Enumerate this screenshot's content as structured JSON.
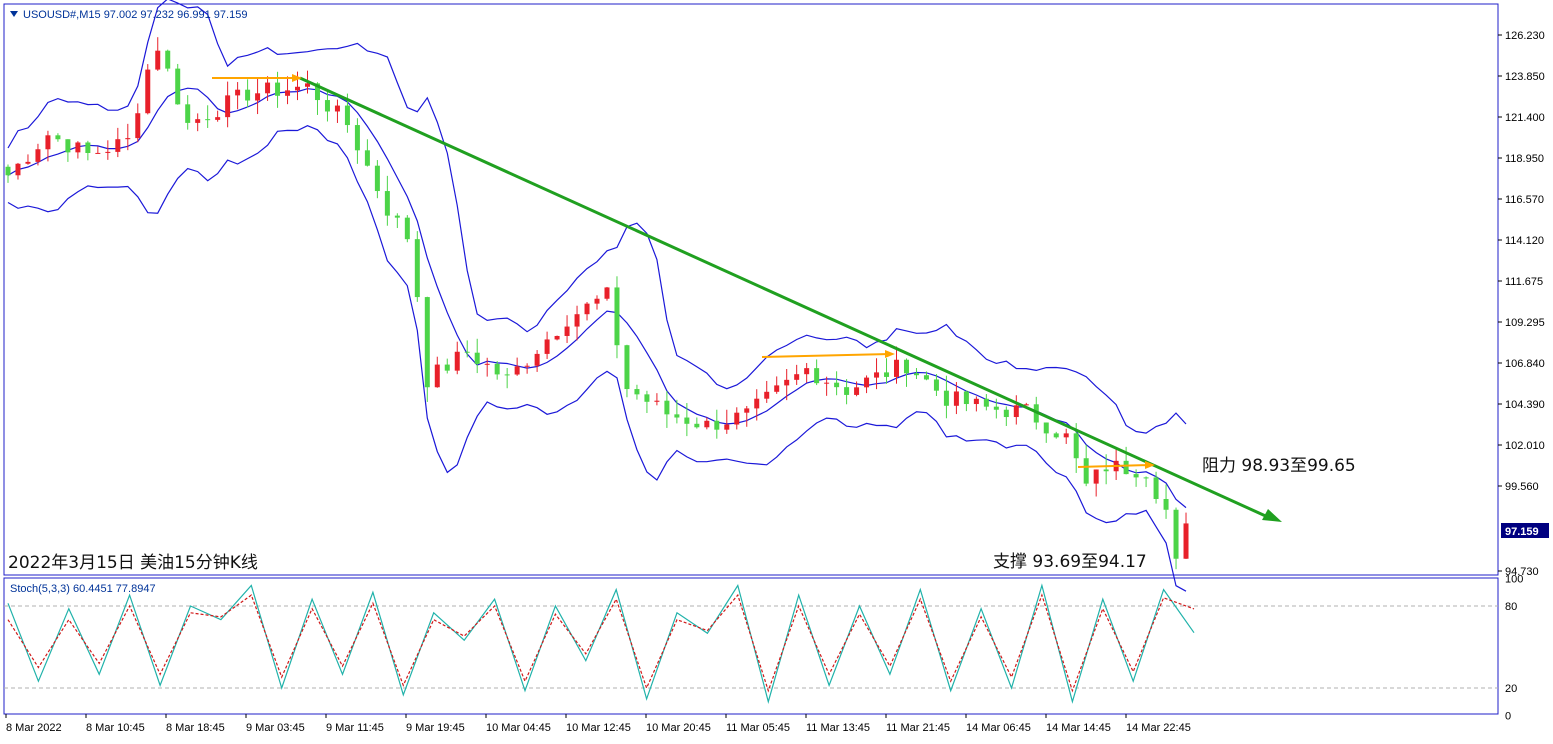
{
  "window": {
    "symbol_header": "USOUSD#,M15  97.002 97.232 96.991 97.159",
    "menu_icon": "triangle-down-icon"
  },
  "annotations": {
    "title": "2022年3月15日 美油15分钟K线",
    "resistance": "阻力 98.93至99.65",
    "support": "支撑 93.69至94.17"
  },
  "price_axis": {
    "ticks": [
      "126.230",
      "123.850",
      "121.400",
      "118.950",
      "116.570",
      "114.120",
      "111.675",
      "109.295",
      "106.840",
      "104.390",
      "102.010",
      "99.560",
      "97.159",
      "94.730"
    ],
    "current_price": "97.159"
  },
  "stoch": {
    "label": "Stoch(5,3,3) 60.4451 77.8947",
    "ticks": [
      "100",
      "80",
      "20",
      "0"
    ],
    "k_value": 60.4451,
    "d_value": 77.8947
  },
  "time_axis": {
    "ticks": [
      "8 Mar 2022",
      "8 Mar 10:45",
      "8 Mar 18:45",
      "9 Mar 03:45",
      "9 Mar 11:45",
      "9 Mar 19:45",
      "10 Mar 04:45",
      "10 Mar 12:45",
      "10 Mar 20:45",
      "11 Mar 05:45",
      "11 Mar 13:45",
      "11 Mar 21:45",
      "14 Mar 06:45",
      "14 Mar 14:45",
      "14 Mar 22:45"
    ]
  },
  "colors": {
    "up": "#e8202a",
    "down": "#4cd448",
    "bands": "#1b18d8",
    "trendline": "#20a020",
    "resistance_lines": "#ffa500",
    "stoch_k": "#20b2aa",
    "stoch_d": "#d01818",
    "frame": "#1f1fc8"
  },
  "chart_data": {
    "type": "candlestick",
    "symbol": "USOUSD#",
    "timeframe": "M15",
    "last": {
      "open": 97.002,
      "high": 97.232,
      "low": 96.991,
      "close": 97.159
    },
    "ylim": [
      93.5,
      128.0
    ],
    "indicators": [
      "Bollinger Bands",
      "Stoch(5,3,3)"
    ],
    "close_path": [
      [
        0,
        118.0
      ],
      [
        4,
        120.4
      ],
      [
        8,
        119.2
      ],
      [
        12,
        120.0
      ],
      [
        14,
        124.2
      ],
      [
        15,
        125.6
      ],
      [
        18,
        121.0
      ],
      [
        24,
        122.8
      ],
      [
        30,
        123.2
      ],
      [
        34,
        121.0
      ],
      [
        38,
        116.0
      ],
      [
        40,
        114.4
      ],
      [
        41,
        111.0
      ],
      [
        42,
        106.0
      ],
      [
        46,
        107.6
      ],
      [
        50,
        106.0
      ],
      [
        56,
        109.6
      ],
      [
        60,
        110.9
      ],
      [
        62,
        105.5
      ],
      [
        66,
        104.0
      ],
      [
        70,
        103.3
      ],
      [
        74,
        103.9
      ],
      [
        80,
        106.6
      ],
      [
        84,
        105.4
      ],
      [
        90,
        106.9
      ],
      [
        94,
        104.9
      ],
      [
        98,
        104.3
      ],
      [
        102,
        104.1
      ],
      [
        106,
        102.6
      ],
      [
        108,
        99.7
      ],
      [
        110,
        100.9
      ],
      [
        114,
        100.7
      ],
      [
        116,
        98.3
      ],
      [
        117,
        95.1
      ],
      [
        118,
        97.16
      ]
    ],
    "trendline": [
      [
        29,
        123.8
      ],
      [
        127,
        97.9
      ]
    ],
    "stoch_k": [
      82,
      25,
      78,
      30,
      88,
      22,
      80,
      70,
      95,
      20,
      85,
      30,
      90,
      15,
      75,
      55,
      85,
      18,
      80,
      40,
      92,
      12,
      75,
      60,
      95,
      10,
      88,
      22,
      80,
      30,
      92,
      18,
      78,
      20,
      95,
      10,
      85,
      25,
      92,
      60.4451
    ],
    "stoch_d": [
      70,
      35,
      70,
      38,
      80,
      30,
      75,
      72,
      88,
      28,
      78,
      36,
      82,
      22,
      70,
      58,
      80,
      25,
      74,
      45,
      85,
      20,
      70,
      62,
      88,
      18,
      80,
      30,
      74,
      36,
      85,
      25,
      72,
      28,
      88,
      18,
      78,
      32,
      86,
      77.8947
    ],
    "stoch_levels": [
      80,
      20
    ]
  }
}
